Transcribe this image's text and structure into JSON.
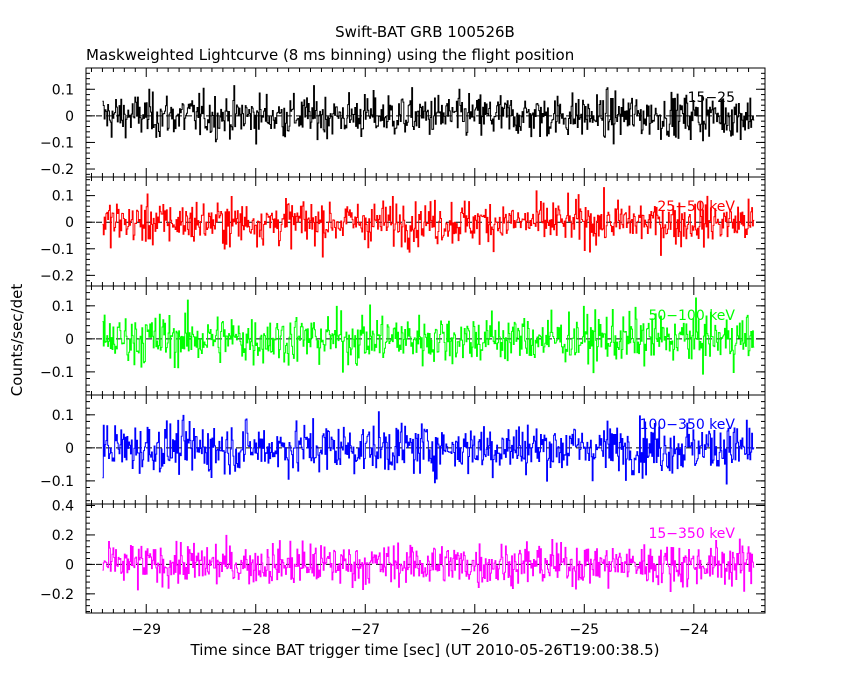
{
  "chart_data": {
    "type": "line",
    "title": "Swift-BAT GRB 100526B",
    "subtitle": "Maskweighted Lightcurve (8 ms binning) using the flight position",
    "xlabel": "Time since BAT trigger time [sec] (UT 2010-05-26T19:00:38.5)",
    "ylabel": "Counts/sec/det",
    "xlim": [
      -29.55,
      -23.35
    ],
    "x_ticks": [
      -29,
      -28,
      -27,
      -26,
      -25,
      -24
    ],
    "x_tick_labels": [
      "−29",
      "−28",
      "−27",
      "−26",
      "−25",
      "−24"
    ],
    "data_x_range": [
      -29.4,
      -23.45
    ],
    "grid": false,
    "series": [
      {
        "name": "15-25",
        "label": "15−25",
        "color": "#000000",
        "ylim": [
          -0.23,
          0.18
        ],
        "y_ticks": [
          0.1,
          0,
          -0.1,
          -0.2
        ],
        "y_tick_labels": [
          "0.1",
          "0",
          "−0.1",
          "−0.2"
        ],
        "amplitude": 0.075
      },
      {
        "name": "25-50 keV",
        "label": "25−50 keV",
        "color": "#ff0000",
        "ylim": [
          -0.24,
          0.17
        ],
        "y_ticks": [
          0.1,
          0,
          -0.1,
          -0.2
        ],
        "y_tick_labels": [
          "0.1",
          "0",
          "−0.1",
          "−0.2"
        ],
        "amplitude": 0.075
      },
      {
        "name": "50-100 keV",
        "label": "50−100 keV",
        "color": "#00ff00",
        "ylim": [
          -0.17,
          0.16
        ],
        "y_ticks": [
          0.1,
          0,
          -0.1
        ],
        "y_tick_labels": [
          "0.1",
          "0",
          "−0.1"
        ],
        "amplitude": 0.07
      },
      {
        "name": "100-350 keV",
        "label": "100−350 keV",
        "color": "#0000ff",
        "ylim": [
          -0.17,
          0.16
        ],
        "y_ticks": [
          0.1,
          0,
          -0.1
        ],
        "y_tick_labels": [
          "0.1",
          "0",
          "−0.1"
        ],
        "amplitude": 0.07
      },
      {
        "name": "15-350 keV",
        "label": "15−350 keV",
        "color": "#ff00ff",
        "ylim": [
          -0.33,
          0.41
        ],
        "y_ticks": [
          0.4,
          0.2,
          0,
          -0.2
        ],
        "y_tick_labels": [
          "0.4",
          "0.2",
          "0",
          "−0.2"
        ],
        "amplitude": 0.13
      }
    ]
  }
}
